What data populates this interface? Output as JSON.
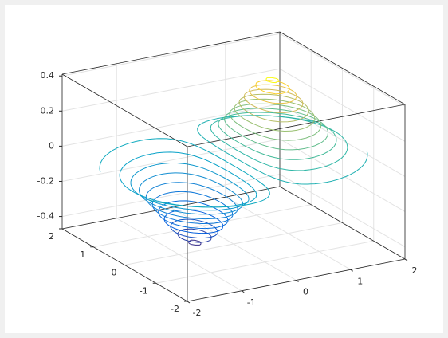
{
  "chart_data": {
    "type": "contour3",
    "xlim": [
      -2,
      2
    ],
    "ylim": [
      -2,
      2
    ],
    "zlim": [
      -0.47,
      0.41
    ],
    "xticks": [
      -2,
      -1,
      0,
      1,
      2
    ],
    "yticks": [
      -2,
      -1,
      0,
      1,
      2
    ],
    "zticks": [
      -0.4,
      -0.2,
      0,
      0.2,
      0.4
    ],
    "levels": [
      -0.42,
      -0.38,
      -0.34,
      -0.3,
      -0.26,
      -0.22,
      -0.18,
      -0.14,
      -0.1,
      -0.06,
      -0.02,
      0.02,
      0.06,
      0.1,
      0.14,
      0.18,
      0.22,
      0.26,
      0.3,
      0.34,
      0.38,
      0.42
    ],
    "colormap": "parula",
    "grid": true,
    "box": true
  }
}
